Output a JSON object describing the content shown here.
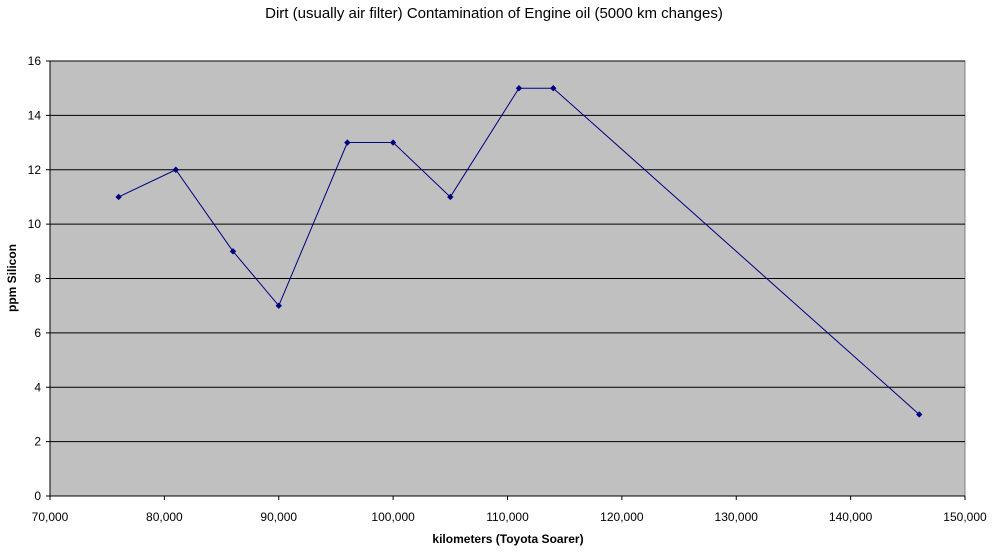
{
  "chart_data": {
    "type": "line",
    "title": "Dirt (usually air filter) Contamination of Engine oil (5000 km changes)",
    "xlabel": "kilometers (Toyota Soarer)",
    "ylabel": "ppm Silicon",
    "xlim": [
      70000,
      150000
    ],
    "ylim": [
      0,
      16
    ],
    "x_ticks": [
      70000,
      80000,
      90000,
      100000,
      110000,
      120000,
      130000,
      140000,
      150000
    ],
    "x_tick_labels": [
      "70,000",
      "80,000",
      "90,000",
      "100,000",
      "110,000",
      "120,000",
      "130,000",
      "140,000",
      "150,000"
    ],
    "y_ticks": [
      0,
      2,
      4,
      6,
      8,
      10,
      12,
      14,
      16
    ],
    "y_tick_labels": [
      "0",
      "2",
      "4",
      "6",
      "8",
      "10",
      "12",
      "14",
      "16"
    ],
    "grid": "horizontal",
    "legend": "none",
    "series": [
      {
        "x": [
          76000,
          81000,
          86000,
          90000,
          96000,
          100000,
          105000,
          111000,
          114000,
          146000
        ],
        "values": [
          11,
          12,
          9,
          7,
          13,
          13,
          11,
          15,
          15,
          3
        ]
      }
    ],
    "colors": {
      "plot_background": "#c0c0c0",
      "gridline": "#000000",
      "series_line": "#000080",
      "marker": "#000080"
    }
  }
}
